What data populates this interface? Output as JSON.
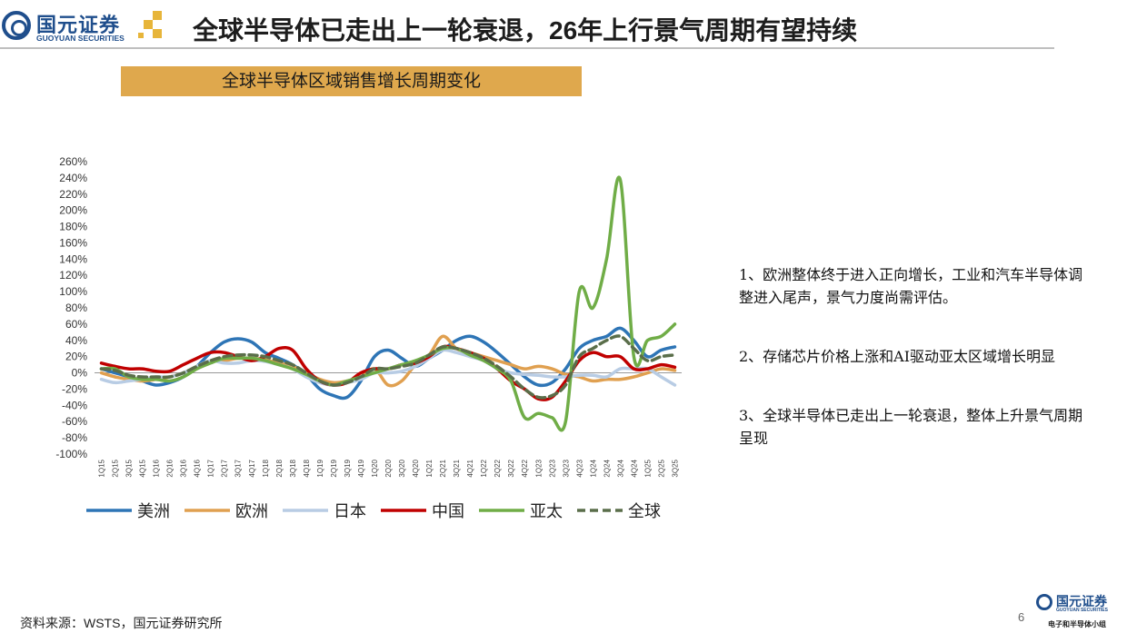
{
  "brand": {
    "cn": "国元证券",
    "en": "GUOYUAN SECURITIES",
    "team": "电子和半导体小组"
  },
  "header": {
    "title": "全球半导体已走出上一轮衰退，26年上行景气周期有望持续"
  },
  "banner": {
    "text": "全球半导体区域销售增长周期变化"
  },
  "notes": [
    "1、欧洲整体终于进入正向增长，工业和汽车半导体调整进入尾声，景气力度尚需评估。",
    "2、存储芯片价格上涨和AI驱动亚太区域增长明显",
    "3、全球半导体已走出上一轮衰退，整体上升景气周期呈现"
  ],
  "footer": {
    "source": "资料来源：WSTS，国元证券研究所",
    "page": "6"
  },
  "chart_data": {
    "type": "line",
    "ylim": [
      -100,
      260
    ],
    "yticks": [
      -100,
      -80,
      -60,
      -40,
      -20,
      0,
      20,
      40,
      60,
      80,
      100,
      120,
      140,
      160,
      180,
      200,
      220,
      240,
      260
    ],
    "ytick_labels": [
      "-100%",
      "-80%",
      "-60%",
      "-40%",
      "-20%",
      "0%",
      "20%",
      "40%",
      "60%",
      "80%",
      "100%",
      "120%",
      "140%",
      "160%",
      "180%",
      "200%",
      "220%",
      "240%",
      "260%"
    ],
    "categories": [
      "1Q15",
      "2Q15",
      "3Q15",
      "4Q15",
      "1Q16",
      "2Q16",
      "3Q16",
      "4Q16",
      "1Q17",
      "2Q17",
      "3Q17",
      "4Q17",
      "1Q18",
      "2Q18",
      "3Q18",
      "4Q18",
      "1Q19",
      "2Q19",
      "3Q19",
      "4Q19",
      "1Q20",
      "2Q20",
      "3Q20",
      "4Q20",
      "1Q21",
      "2Q21",
      "3Q21",
      "4Q21",
      "1Q22",
      "2Q22",
      "3Q22",
      "4Q22",
      "1Q23",
      "2Q23",
      "3Q23",
      "4Q23",
      "1Q24",
      "2Q24",
      "3Q24",
      "4Q24",
      "1Q25",
      "2Q25",
      "3Q25"
    ],
    "legend_position": "bottom",
    "series": [
      {
        "name": "美洲",
        "color": "#2e75b6",
        "dash": false,
        "values": [
          5,
          0,
          -5,
          -10,
          -15,
          -12,
          -5,
          8,
          25,
          38,
          42,
          38,
          25,
          18,
          10,
          -2,
          -20,
          -28,
          -30,
          -10,
          20,
          28,
          18,
          8,
          18,
          28,
          40,
          45,
          38,
          25,
          10,
          -5,
          -15,
          -12,
          5,
          30,
          40,
          45,
          55,
          40,
          20,
          28,
          32
        ]
      },
      {
        "name": "欧洲",
        "color": "#e0a050",
        "dash": false,
        "values": [
          0,
          -5,
          -8,
          -10,
          -8,
          -5,
          0,
          8,
          15,
          15,
          18,
          18,
          16,
          12,
          8,
          0,
          -8,
          -12,
          -10,
          -5,
          5,
          -15,
          -10,
          10,
          22,
          45,
          30,
          25,
          20,
          15,
          10,
          5,
          8,
          5,
          -2,
          -5,
          -10,
          -8,
          -8,
          -5,
          0,
          5,
          3
        ]
      },
      {
        "name": "日本",
        "color": "#b8cce4",
        "dash": false,
        "values": [
          -8,
          -12,
          -10,
          -8,
          -5,
          -5,
          0,
          8,
          15,
          12,
          12,
          15,
          14,
          10,
          5,
          -5,
          -12,
          -15,
          -12,
          -8,
          0,
          0,
          2,
          8,
          18,
          28,
          25,
          20,
          15,
          5,
          0,
          -2,
          -3,
          -5,
          -5,
          -3,
          -3,
          -5,
          5,
          5,
          5,
          -5,
          -15
        ]
      },
      {
        "name": "中国",
        "color": "#c00000",
        "dash": false,
        "values": [
          12,
          8,
          5,
          5,
          2,
          2,
          10,
          18,
          25,
          25,
          20,
          15,
          20,
          30,
          28,
          5,
          -10,
          -15,
          -12,
          0,
          5,
          5,
          10,
          12,
          20,
          32,
          30,
          25,
          18,
          5,
          -10,
          -20,
          -32,
          -30,
          -10,
          15,
          25,
          20,
          20,
          5,
          5,
          10,
          7
        ]
      },
      {
        "name": "亚太",
        "color": "#70ad47",
        "dash": false,
        "values": [
          5,
          5,
          -5,
          -8,
          -8,
          -10,
          -5,
          5,
          12,
          18,
          18,
          18,
          15,
          10,
          5,
          -2,
          -10,
          -15,
          -10,
          -5,
          0,
          5,
          10,
          15,
          22,
          30,
          30,
          22,
          15,
          5,
          -10,
          -55,
          -50,
          -55,
          -60,
          100,
          80,
          140,
          238,
          20,
          40,
          45,
          60
        ]
      },
      {
        "name": "全球",
        "color": "#5a6e4a",
        "dash": true,
        "values": [
          5,
          3,
          -3,
          -5,
          -5,
          -5,
          0,
          8,
          15,
          20,
          22,
          22,
          20,
          15,
          10,
          0,
          -10,
          -15,
          -12,
          -5,
          5,
          5,
          8,
          12,
          22,
          32,
          30,
          25,
          18,
          8,
          -5,
          -20,
          -30,
          -28,
          -15,
          20,
          30,
          40,
          45,
          30,
          15,
          20,
          22
        ]
      }
    ]
  }
}
